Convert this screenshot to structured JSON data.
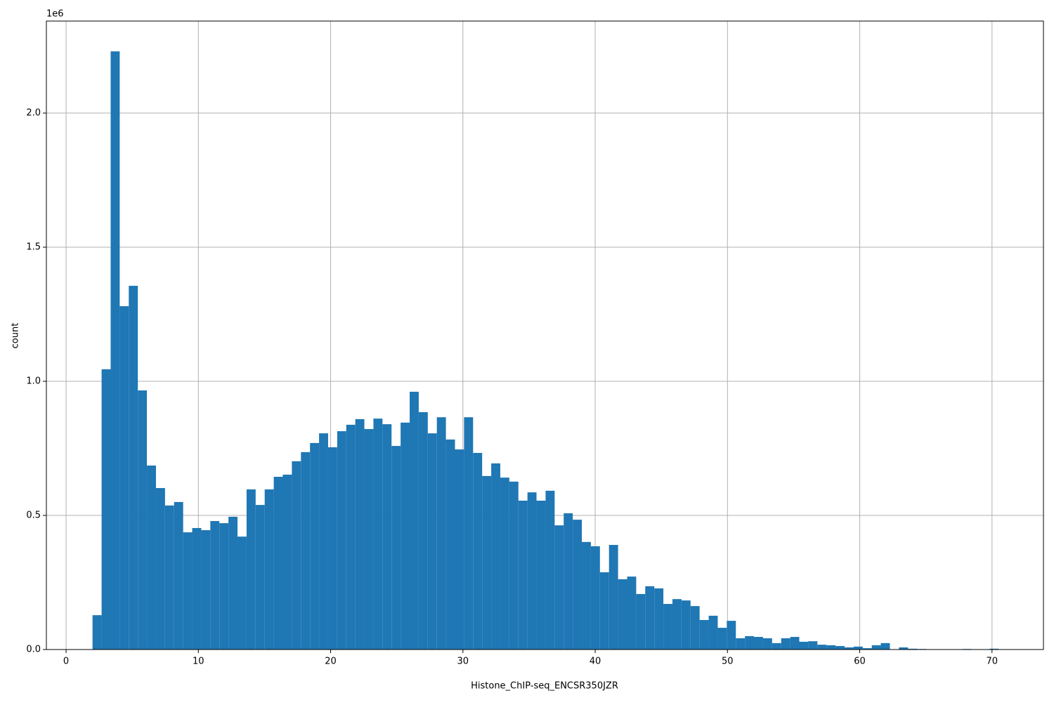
{
  "chart_data": {
    "type": "histogram",
    "x_label": "Histone_ChIP-seq_ENCSR350JZR",
    "y_label": "count",
    "y_offset_label": "1e6",
    "color": "#1f77b4",
    "grid": true,
    "bins": [
      2,
      2.685,
      3.37,
      4.055,
      4.74,
      5.425,
      6.11,
      6.795,
      7.48,
      8.165,
      8.85,
      9.535,
      10.22,
      10.905,
      11.59,
      12.275,
      12.96,
      13.645,
      14.33,
      15.015,
      15.7,
      16.385,
      17.07,
      17.755,
      18.44,
      19.125,
      19.81,
      20.495,
      21.18,
      21.865,
      22.55,
      23.235,
      23.92,
      24.605,
      25.29,
      25.975,
      26.66,
      27.345,
      28.03,
      28.715,
      29.4,
      30.085,
      30.77,
      31.455,
      32.14,
      32.825,
      33.51,
      34.195,
      34.88,
      35.565,
      36.25,
      36.935,
      37.62,
      38.305,
      38.99,
      39.675,
      40.36,
      41.045,
      41.73,
      42.415,
      43.1,
      43.785,
      44.47,
      45.155,
      45.84,
      46.525,
      47.21,
      47.895,
      48.58,
      49.265,
      49.95,
      50.635,
      51.32,
      52.005,
      52.69,
      53.375,
      54.06,
      54.745,
      55.43,
      56.115,
      56.8,
      57.485,
      58.17,
      58.855,
      59.54,
      60.225,
      60.91,
      61.595,
      62.28,
      62.965,
      63.65,
      64.335,
      65.02,
      65.705,
      66.39,
      67.075,
      67.76,
      68.445,
      69.13,
      69.815,
      70.5
    ],
    "values": [
      128000,
      1045000,
      2230000,
      1280000,
      1356000,
      966000,
      686000,
      602000,
      537000,
      550000,
      437000,
      453000,
      445000,
      479000,
      471000,
      495000,
      421000,
      597000,
      539000,
      597000,
      644000,
      652000,
      702000,
      736000,
      770000,
      806000,
      754000,
      814000,
      838000,
      859000,
      822000,
      861000,
      840000,
      759000,
      846000,
      961000,
      885000,
      806000,
      866000,
      783000,
      746000,
      866000,
      733000,
      647000,
      694000,
      641000,
      626000,
      555000,
      586000,
      555000,
      592000,
      463000,
      508000,
      484000,
      401000,
      385000,
      288000,
      390000,
      262000,
      272000,
      207000,
      236000,
      228000,
      170000,
      188000,
      183000,
      162000,
      110000,
      126000,
      81000,
      107000,
      42000,
      50000,
      47000,
      42000,
      24000,
      42000,
      47000,
      29000,
      31000,
      18000,
      16000,
      13000,
      8000,
      11000,
      5000,
      16000,
      24000,
      1000,
      8000,
      3000,
      2000,
      0,
      0,
      0,
      0,
      2000,
      0,
      0,
      3000
    ],
    "xlim": [
      -1.49,
      73.89
    ],
    "ylim": [
      0,
      2343000
    ],
    "xticks": [
      0,
      10,
      20,
      30,
      40,
      50,
      60,
      70
    ],
    "yticks": [
      {
        "value": 0,
        "label": "0.0"
      },
      {
        "value": 500000,
        "label": "0.5"
      },
      {
        "value": 1000000,
        "label": "1.0"
      },
      {
        "value": 1500000,
        "label": "1.5"
      },
      {
        "value": 2000000,
        "label": "2.0"
      }
    ]
  }
}
